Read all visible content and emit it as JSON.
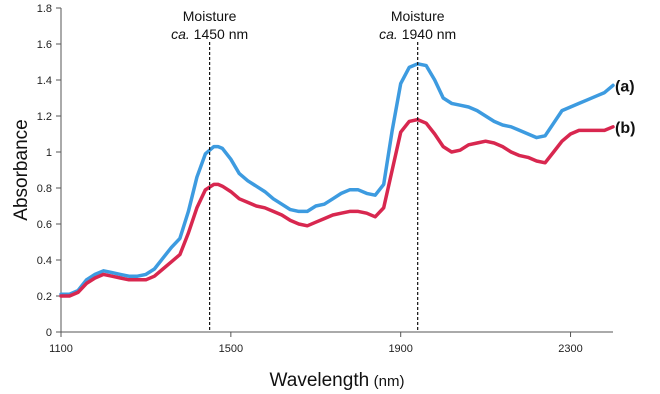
{
  "chart_data": {
    "type": "line",
    "xlabel": "Wavelength",
    "xlabel_unit": "(nm)",
    "ylabel": "Absorbance",
    "xlim": [
      1100,
      2400
    ],
    "ylim": [
      0,
      1.8
    ],
    "xticks": [
      1100,
      1500,
      1900,
      2300
    ],
    "yticks": [
      0,
      0.2,
      0.4,
      0.6,
      0.8,
      1,
      1.2,
      1.4,
      1.6,
      1.8
    ],
    "grid": false,
    "series": [
      {
        "name": "(a)",
        "color": "#3d9be0",
        "x": [
          1100,
          1120,
          1140,
          1160,
          1180,
          1200,
          1220,
          1240,
          1260,
          1280,
          1300,
          1320,
          1340,
          1360,
          1380,
          1400,
          1420,
          1440,
          1460,
          1470,
          1480,
          1500,
          1520,
          1540,
          1560,
          1580,
          1600,
          1620,
          1640,
          1660,
          1680,
          1700,
          1720,
          1740,
          1760,
          1780,
          1800,
          1820,
          1840,
          1860,
          1880,
          1900,
          1920,
          1940,
          1960,
          1980,
          2000,
          2020,
          2040,
          2060,
          2080,
          2100,
          2120,
          2140,
          2160,
          2180,
          2200,
          2220,
          2240,
          2260,
          2280,
          2300,
          2320,
          2340,
          2360,
          2380,
          2400
        ],
        "y": [
          0.21,
          0.21,
          0.23,
          0.29,
          0.32,
          0.34,
          0.33,
          0.32,
          0.31,
          0.31,
          0.32,
          0.35,
          0.41,
          0.47,
          0.52,
          0.67,
          0.86,
          0.99,
          1.03,
          1.03,
          1.02,
          0.96,
          0.88,
          0.84,
          0.81,
          0.78,
          0.74,
          0.71,
          0.68,
          0.67,
          0.67,
          0.7,
          0.71,
          0.74,
          0.77,
          0.79,
          0.79,
          0.77,
          0.76,
          0.82,
          1.12,
          1.38,
          1.47,
          1.49,
          1.48,
          1.4,
          1.3,
          1.27,
          1.26,
          1.25,
          1.23,
          1.2,
          1.17,
          1.15,
          1.14,
          1.12,
          1.1,
          1.08,
          1.09,
          1.16,
          1.23,
          1.25,
          1.27,
          1.29,
          1.31,
          1.33,
          1.37
        ]
      },
      {
        "name": "(b)",
        "color": "#d8274f",
        "x": [
          1100,
          1120,
          1140,
          1160,
          1180,
          1200,
          1220,
          1240,
          1260,
          1280,
          1300,
          1320,
          1340,
          1360,
          1380,
          1400,
          1420,
          1440,
          1460,
          1470,
          1480,
          1500,
          1520,
          1540,
          1560,
          1580,
          1600,
          1620,
          1640,
          1660,
          1680,
          1700,
          1720,
          1740,
          1760,
          1780,
          1800,
          1820,
          1840,
          1860,
          1880,
          1900,
          1920,
          1940,
          1960,
          1980,
          2000,
          2020,
          2040,
          2060,
          2080,
          2100,
          2120,
          2140,
          2160,
          2180,
          2200,
          2220,
          2240,
          2260,
          2280,
          2300,
          2320,
          2340,
          2360,
          2380,
          2400
        ],
        "y": [
          0.2,
          0.2,
          0.22,
          0.27,
          0.3,
          0.32,
          0.31,
          0.3,
          0.29,
          0.29,
          0.29,
          0.31,
          0.35,
          0.39,
          0.43,
          0.55,
          0.69,
          0.79,
          0.82,
          0.82,
          0.81,
          0.78,
          0.74,
          0.72,
          0.7,
          0.69,
          0.67,
          0.65,
          0.62,
          0.6,
          0.59,
          0.61,
          0.63,
          0.65,
          0.66,
          0.67,
          0.67,
          0.66,
          0.64,
          0.69,
          0.9,
          1.11,
          1.17,
          1.18,
          1.16,
          1.1,
          1.03,
          1.0,
          1.01,
          1.04,
          1.05,
          1.06,
          1.05,
          1.03,
          1.0,
          0.98,
          0.97,
          0.95,
          0.94,
          1.0,
          1.06,
          1.1,
          1.12,
          1.12,
          1.12,
          1.12,
          1.14
        ]
      }
    ],
    "annotations": [
      {
        "line1": "Moisture",
        "ca": "ca.",
        "value": "1450 nm",
        "x": 1450
      },
      {
        "line1": "Moisture",
        "ca": "ca.",
        "value": "1940 nm",
        "x": 1940
      }
    ]
  }
}
